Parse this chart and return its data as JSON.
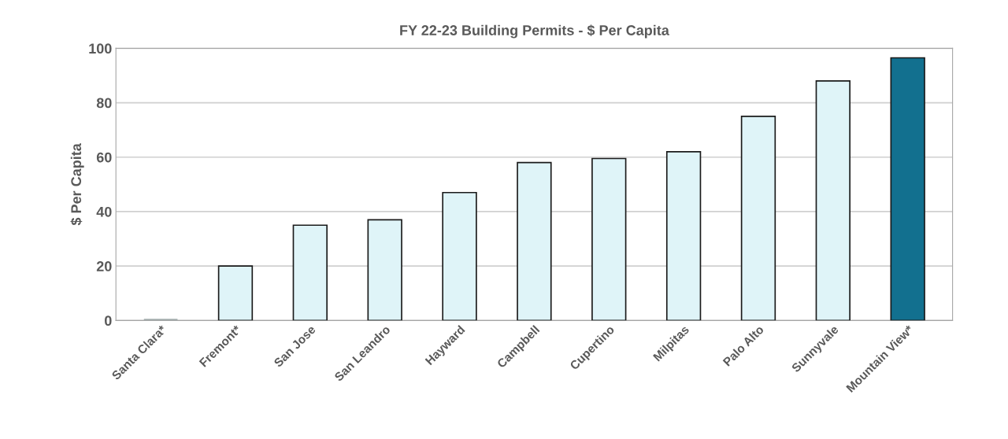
{
  "chart_data": {
    "type": "bar",
    "title": "FY 22-23 Building Permits - $ Per Capita",
    "ylabel": "$ Per Capita",
    "categories": [
      "Santa Clara*",
      "Fremont*",
      "San Jose",
      "San Leandro",
      "Hayward",
      "Campbell",
      "Cupertino",
      "Milpitas",
      "Palo Alto",
      "Sunnyvale",
      "Mountain View*"
    ],
    "values": [
      0,
      20,
      35,
      37,
      47,
      58,
      59.5,
      62,
      75,
      88,
      96.5
    ],
    "colors": [
      "#a3adad",
      "#dff4f8",
      "#dff4f8",
      "#dff4f8",
      "#dff4f8",
      "#dff4f8",
      "#dff4f8",
      "#dff4f8",
      "#dff4f8",
      "#dff4f8",
      "#12708f"
    ],
    "ylim": [
      0,
      100
    ],
    "yticks": [
      0,
      20,
      40,
      60,
      80,
      100
    ],
    "grid": "y"
  }
}
